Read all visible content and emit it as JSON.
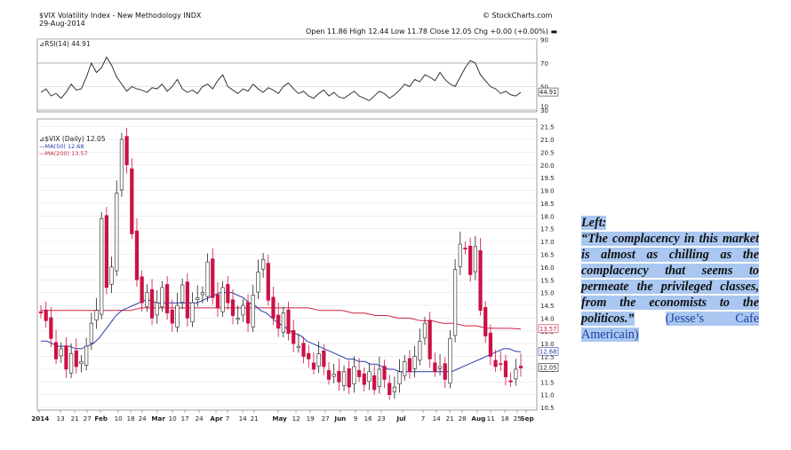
{
  "header": {
    "symbol_title": "$VIX Volatility Index - New Methodology INDX",
    "date": "29-Aug-2014",
    "source": "© StockCharts.com",
    "ohlc": "Open 11.86 High 12.44 Low 11.78 Close 12.05 Chg +0.00 (+0.00%) ▬"
  },
  "chart_data": [
    {
      "type": "line",
      "title": "RSI(14) 44.91",
      "series": [
        {
          "name": "RSI(14)",
          "values": [
            45,
            48,
            42,
            44,
            40,
            45,
            52,
            47,
            48,
            58,
            70,
            62,
            66,
            75,
            68,
            58,
            52,
            46,
            50,
            48,
            47,
            45,
            49,
            48,
            52,
            46,
            50,
            56,
            48,
            45,
            47,
            44,
            50,
            52,
            48,
            55,
            60,
            50,
            47,
            44,
            48,
            46,
            52,
            48,
            45,
            49,
            47,
            44,
            50,
            53,
            48,
            44,
            46,
            42,
            40,
            44,
            47,
            42,
            45,
            41,
            40,
            43,
            46,
            42,
            40,
            38,
            42,
            46,
            44,
            40,
            43,
            47,
            52,
            50,
            56,
            54,
            60,
            58,
            55,
            62,
            56,
            52,
            50,
            58,
            66,
            72,
            70,
            60,
            55,
            50,
            48,
            44,
            46,
            43,
            42,
            45
          ]
        }
      ],
      "y_ticks": [
        30,
        50,
        70,
        90
      ],
      "ylim": [
        30,
        90
      ],
      "last_value_label": "44.91"
    },
    {
      "type": "candlestick",
      "title": "$VIX (Daily) 12.05",
      "legend": [
        "MA(50) 12.68",
        "MA(200) 13.57"
      ],
      "x_ticks": [
        "2014",
        "13",
        "21",
        "27",
        "Feb",
        "10",
        "18",
        "24",
        "Mar",
        "10",
        "17",
        "24",
        "Apr",
        "7",
        "14",
        "21",
        "May",
        "12",
        "19",
        "27",
        "Jun",
        "9",
        "16",
        "23",
        "Jul",
        "7",
        "14",
        "21",
        "28",
        "Aug",
        "11",
        "18",
        "25",
        "Sep"
      ],
      "y_ticks": [
        10.5,
        11.0,
        11.5,
        12.0,
        12.5,
        13.0,
        13.5,
        14.0,
        14.5,
        15.0,
        15.5,
        16.0,
        16.5,
        17.0,
        17.5,
        18.0,
        18.5,
        19.0,
        19.5,
        20.0,
        20.5,
        21.0,
        21.5
      ],
      "ylim": [
        10.5,
        21.5
      ],
      "close": [
        14.2,
        13.9,
        13.2,
        12.4,
        12.8,
        12.0,
        12.6,
        12.1,
        12.3,
        12.9,
        13.8,
        14.3,
        17.9,
        15.2,
        16.0,
        18.9,
        21.0,
        20.0,
        17.3,
        15.5,
        14.6,
        15.0,
        14.0,
        14.6,
        15.2,
        14.2,
        13.8,
        14.5,
        15.3,
        14.0,
        14.6,
        14.8,
        15.0,
        16.2,
        14.8,
        14.4,
        15.2,
        14.6,
        14.1,
        14.0,
        14.5,
        13.8,
        14.9,
        15.8,
        16.3,
        14.7,
        14.0,
        13.6,
        14.2,
        13.4,
        13.0,
        12.9,
        12.5,
        12.4,
        12.0,
        12.6,
        12.1,
        11.6,
        11.8,
        11.5,
        11.9,
        11.3,
        12.1,
        11.7,
        11.4,
        11.9,
        11.2,
        12.0,
        11.6,
        11.0,
        11.3,
        11.9,
        12.3,
        11.9,
        12.5,
        13.1,
        13.8,
        12.4,
        11.9,
        12.1,
        11.6,
        13.2,
        15.9,
        16.9,
        16.7,
        15.7,
        16.8,
        14.3,
        13.3,
        12.5,
        12.1,
        12.2,
        11.7,
        11.5,
        12.0,
        12.05
      ],
      "ma50": [
        13.1,
        13.1,
        13.0,
        12.9,
        12.9,
        12.9,
        12.8,
        12.8,
        12.9,
        13.0,
        13.2,
        13.5,
        13.8,
        14.1,
        14.3,
        14.4,
        14.5,
        14.6,
        14.7,
        14.7,
        14.6,
        14.6,
        14.6,
        14.6,
        14.6,
        14.6,
        14.6,
        14.6,
        14.7,
        14.8,
        14.9,
        15.0,
        15.0,
        15.0,
        14.9,
        14.8,
        14.6,
        14.5,
        14.3,
        14.2,
        14.0,
        13.8,
        13.7,
        13.5,
        13.4,
        13.3,
        13.1,
        13.0,
        12.9,
        12.8,
        12.7,
        12.6,
        12.5,
        12.4,
        12.4,
        12.3,
        12.3,
        12.2,
        12.2,
        12.1,
        12.0,
        12.0,
        11.9,
        11.9,
        11.9,
        11.9,
        11.9,
        11.9,
        11.9,
        11.9,
        11.9,
        11.9,
        12.0,
        12.1,
        12.2,
        12.3,
        12.4,
        12.5,
        12.6,
        12.7,
        12.8,
        12.8,
        12.7,
        12.68
      ],
      "ma200": [
        14.3,
        14.3,
        14.3,
        14.3,
        14.3,
        14.3,
        14.3,
        14.3,
        14.3,
        14.4,
        14.4,
        14.4,
        14.4,
        14.4,
        14.4,
        14.4,
        14.4,
        14.4,
        14.4,
        14.4,
        14.4,
        14.4,
        14.4,
        14.4,
        14.4,
        14.3,
        14.3,
        14.3,
        14.2,
        14.2,
        14.1,
        14.1,
        14.0,
        14.0,
        13.9,
        13.9,
        13.8,
        13.8,
        13.7,
        13.7,
        13.6,
        13.6,
        13.6,
        13.57
      ]
    }
  ],
  "labels": {
    "ma50_last": "12.68",
    "ma200_last": "13.57",
    "close_last": "12.05"
  },
  "quote": {
    "heading": "Left:",
    "body": "“The complacency in this market is almost as chilling as the complacency that seems to permeate the privileged classes, from the economists to the politicos.”",
    "source": "(Jesse’s Cafe Americain)"
  },
  "colors": {
    "up": "#ffffff",
    "down": "#cc1144",
    "ma50": "#2a3caa",
    "ma200": "#cc2244",
    "highlight": "#a9c7f0"
  }
}
